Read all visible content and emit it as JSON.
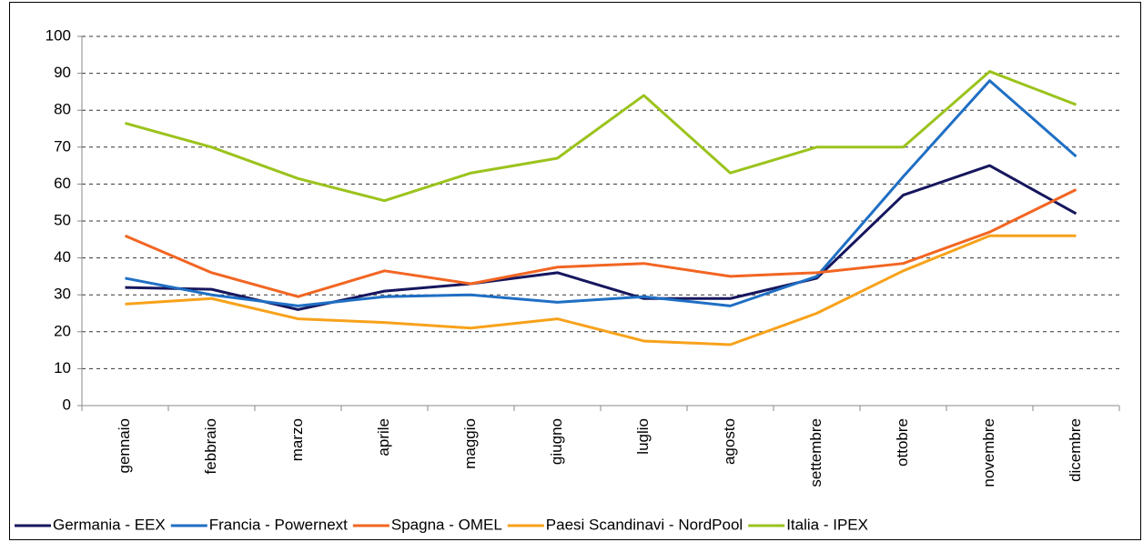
{
  "chart_data": {
    "type": "line",
    "categories": [
      "gennaio",
      "febbraio",
      "marzo",
      "aprile",
      "maggio",
      "giugno",
      "luglio",
      "agosto",
      "settembre",
      "ottobre",
      "novembre",
      "dicembre"
    ],
    "series": [
      {
        "name": "Germania - EEX",
        "color": "#16165e",
        "values": [
          32,
          31.5,
          26,
          31,
          33,
          36,
          29,
          29,
          34.5,
          57,
          65,
          52
        ]
      },
      {
        "name": "Francia - Powernext",
        "color": "#1f6fc4",
        "values": [
          34.5,
          30,
          27,
          29.5,
          30,
          28,
          29.5,
          27,
          35,
          62,
          88,
          67.5
        ]
      },
      {
        "name": "Spagna - OMEL",
        "color": "#f26522",
        "values": [
          46,
          36,
          29.5,
          36.5,
          33,
          37.5,
          38.5,
          35,
          36,
          38.5,
          47,
          58.5
        ]
      },
      {
        "name": "Paesi Scandinavi - NordPool",
        "color": "#f7a21b",
        "values": [
          27.5,
          29,
          23.5,
          22.5,
          21,
          23.5,
          17.5,
          16.5,
          25,
          36.5,
          46,
          46
        ]
      },
      {
        "name": "Italia - IPEX",
        "color": "#9bc31c",
        "values": [
          76.5,
          70,
          61.5,
          55.5,
          63,
          67,
          84,
          63,
          70,
          70,
          90.5,
          81.5
        ]
      }
    ],
    "ylim": [
      0,
      100
    ],
    "yticks": [
      0,
      10,
      20,
      30,
      40,
      50,
      60,
      70,
      80,
      90,
      100
    ],
    "grid": true,
    "legend": "bottom"
  }
}
